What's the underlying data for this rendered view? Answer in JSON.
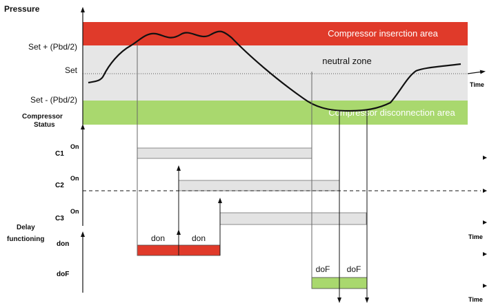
{
  "pressure_chart": {
    "y_axis_label": "Pressure",
    "x_axis_label": "Time",
    "levels": {
      "set_plus": "Set + (Pbd/2)",
      "set": "Set",
      "set_minus": "Set - (Pbd/2)"
    },
    "zones": {
      "insertion": "Compressor inserction area",
      "neutral": "neutral zone",
      "disconnection": "Compressor disconnection area"
    },
    "colors": {
      "insertion": "#e03a2a",
      "neutral": "#e6e6e6",
      "disconnection": "#a9d86e"
    }
  },
  "status_chart": {
    "title_line1": "Compressor",
    "title_line2": "Status",
    "rows": [
      {
        "name": "C1",
        "state": "On"
      },
      {
        "name": "C2",
        "state": "On"
      },
      {
        "name": "C3",
        "state": "On"
      }
    ],
    "x_axis_label": "Time",
    "bar_color": "#e3e3e3"
  },
  "delay_chart": {
    "title_line1": "Delay",
    "title_line2": "functioning",
    "rows": [
      {
        "name": "don",
        "segments": [
          "don",
          "don"
        ],
        "color": "#e03a2a"
      },
      {
        "name": "doF",
        "segments": [
          "doF",
          "doF"
        ],
        "color": "#a9d86e"
      }
    ],
    "x_axis_label": "Time"
  }
}
